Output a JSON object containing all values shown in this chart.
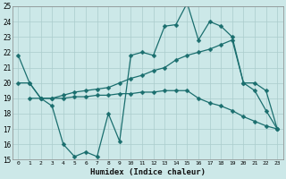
{
  "xlabel": "Humidex (Indice chaleur)",
  "background_color": "#cce8e8",
  "line_color": "#1a6e6e",
  "grid_color": "#aacccc",
  "xlim": [
    -0.5,
    23.5
  ],
  "ylim": [
    15,
    25
  ],
  "xticks": [
    0,
    1,
    2,
    3,
    4,
    5,
    6,
    7,
    8,
    9,
    10,
    11,
    12,
    13,
    14,
    15,
    16,
    17,
    18,
    19,
    20,
    21,
    22,
    23
  ],
  "yticks": [
    15,
    16,
    17,
    18,
    19,
    20,
    21,
    22,
    23,
    24,
    25
  ],
  "series1_x": [
    0,
    1,
    2,
    3,
    4,
    5,
    6,
    7,
    8,
    9,
    10,
    11,
    12,
    13,
    14,
    15,
    16,
    17,
    18,
    19,
    20,
    21,
    22,
    23
  ],
  "series1_y": [
    21.8,
    20.0,
    19.0,
    18.5,
    16.0,
    15.2,
    15.5,
    15.2,
    18.0,
    16.2,
    21.8,
    22.0,
    21.8,
    23.7,
    23.8,
    25.2,
    22.8,
    24.0,
    23.7,
    23.0,
    20.0,
    19.5,
    18.2,
    17.0
  ],
  "series2_x": [
    0,
    1,
    2,
    3,
    4,
    5,
    6,
    7,
    8,
    9,
    10,
    11,
    12,
    13,
    14,
    15,
    16,
    17,
    18,
    19,
    20,
    21,
    22,
    23
  ],
  "series2_y": [
    20.0,
    20.0,
    19.0,
    19.0,
    19.2,
    19.4,
    19.5,
    19.6,
    19.7,
    20.0,
    20.3,
    20.5,
    20.8,
    21.0,
    21.5,
    21.8,
    22.0,
    22.2,
    22.5,
    22.8,
    20.0,
    20.0,
    19.5,
    17.0
  ],
  "series3_x": [
    1,
    2,
    3,
    4,
    5,
    6,
    7,
    8,
    9,
    10,
    11,
    12,
    13,
    14,
    15,
    16,
    17,
    18,
    19,
    20,
    21,
    22,
    23
  ],
  "series3_y": [
    19.0,
    19.0,
    19.0,
    19.0,
    19.1,
    19.1,
    19.2,
    19.2,
    19.3,
    19.3,
    19.4,
    19.4,
    19.5,
    19.5,
    19.5,
    19.0,
    18.7,
    18.5,
    18.2,
    17.8,
    17.5,
    17.2,
    17.0
  ]
}
